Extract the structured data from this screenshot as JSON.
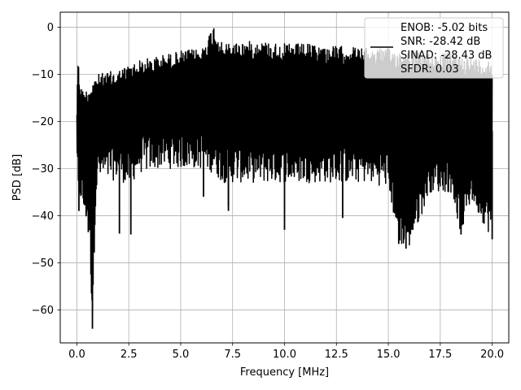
{
  "chart_data": {
    "type": "line",
    "xlabel": "Frequency [MHz]",
    "ylabel": "PSD [dB]",
    "xlim": [
      -0.8,
      20.8
    ],
    "ylim": [
      -67,
      3.2
    ],
    "grid": true,
    "legend_placement": "top-right",
    "x_ticks": [
      0.0,
      2.5,
      5.0,
      7.5,
      10.0,
      12.5,
      15.0,
      17.5,
      20.0
    ],
    "x_tick_labels": [
      "0.0",
      "2.5",
      "5.0",
      "7.5",
      "10.0",
      "12.5",
      "15.0",
      "17.5",
      "20.0"
    ],
    "y_ticks": [
      0,
      -10,
      -20,
      -30,
      -40,
      -50,
      -60
    ],
    "y_tick_labels": [
      "0",
      "−10",
      "−20",
      "−30",
      "−40",
      "−50",
      "−60"
    ],
    "series": [
      {
        "name": "ENOB: -5.02 bits",
        "color": "#000000",
        "envelope": {
          "x": [
            0.0,
            0.05,
            0.1,
            0.2,
            0.3,
            0.5,
            0.6,
            0.75,
            0.9,
            1.0,
            1.5,
            2.0,
            2.5,
            3.0,
            4.0,
            5.0,
            6.0,
            6.6,
            7.0,
            8.0,
            9.0,
            10.0,
            11.0,
            12.0,
            13.0,
            14.0,
            15.0,
            15.5,
            16.0,
            17.0,
            18.0,
            18.5,
            19.0,
            20.0
          ],
          "upper": [
            -16.0,
            -5.0,
            -9.0,
            -12.0,
            -13.5,
            -13.0,
            -12.5,
            -11.0,
            -10.5,
            -10.0,
            -9.5,
            -9.0,
            -8.0,
            -7.0,
            -6.0,
            -5.0,
            -4.5,
            0.5,
            -3.5,
            -3.0,
            -3.0,
            -3.5,
            -3.5,
            -4.0,
            -4.0,
            -4.5,
            -4.5,
            -5.0,
            -5.0,
            -5.5,
            -5.5,
            -6.0,
            -6.5,
            -7.0
          ],
          "lower": [
            -26.0,
            -37.0,
            -39.0,
            -37.0,
            -40.0,
            -42.0,
            -43.5,
            -64.0,
            -38.0,
            -33.0,
            -33.0,
            -32.0,
            -34.0,
            -31.0,
            -30.0,
            -30.0,
            -30.0,
            -31.0,
            -33.0,
            -33.0,
            -33.0,
            -33.0,
            -33.0,
            -33.0,
            -33.0,
            -33.0,
            -34.0,
            -46.0,
            -47.0,
            -35.0,
            -35.0,
            -44.0,
            -37.0,
            -45.0
          ]
        },
        "dips": [
          {
            "x": 0.1,
            "y": -39.0
          },
          {
            "x": 0.45,
            "y": -40.0
          },
          {
            "x": 0.55,
            "y": -43.5
          },
          {
            "x": 0.75,
            "y": -64.0
          },
          {
            "x": 2.05,
            "y": -43.8
          },
          {
            "x": 2.6,
            "y": -44.0
          },
          {
            "x": 6.1,
            "y": -36.0
          },
          {
            "x": 7.3,
            "y": -38.0
          },
          {
            "x": 7.3,
            "y": -39.0
          },
          {
            "x": 10.0,
            "y": -43.0
          },
          {
            "x": 12.8,
            "y": -40.5
          },
          {
            "x": 15.5,
            "y": -46.0
          },
          {
            "x": 15.85,
            "y": -47.0
          },
          {
            "x": 18.5,
            "y": -44.0
          },
          {
            "x": 20.0,
            "y": -45.0
          }
        ]
      }
    ],
    "legend_lines": [
      "ENOB: -5.02 bits",
      "SNR: -28.42 dB",
      "SINAD: -28.43 dB",
      "SFDR: 0.03"
    ]
  }
}
